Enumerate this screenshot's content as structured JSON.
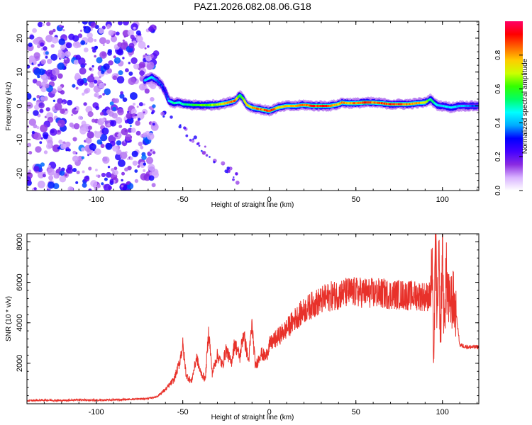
{
  "title": "PAZ1.2026.082.08.06.G18",
  "chart_data": [
    {
      "type": "heatmap",
      "title": "PAZ1.2026.082.08.06.G18",
      "xlabel": "Height of straight line (km)",
      "ylabel": "Frequency (Hz)",
      "xlim": [
        -140,
        121
      ],
      "ylim": [
        -25,
        25
      ],
      "xticks": [
        -100,
        -50,
        0,
        50,
        100
      ],
      "yticks": [
        -20,
        -10,
        0,
        10,
        20
      ],
      "xtick_labels": [
        "-100",
        "-50",
        "0",
        "50",
        "100"
      ],
      "ytick_labels": [
        "-20",
        "-10",
        "0",
        "10",
        "20"
      ],
      "colorbar": {
        "label": "Normalized spectral amplitude",
        "range": [
          0,
          1
        ],
        "ticks": [
          0,
          0.2,
          0.4,
          0.6,
          0.8
        ],
        "tick_labels": [
          "0.0",
          "0.2",
          "0.4",
          "0.6",
          "0.8"
        ],
        "colors": [
          "#ffffff",
          "#d9b3ff",
          "#8a2be2",
          "#4400ff",
          "#0000ff",
          "#00aaff",
          "#00ffff",
          "#00ff66",
          "#33ff00",
          "#ccff00",
          "#ffcc00",
          "#ff6600",
          "#ff0000",
          "#ff0066"
        ]
      },
      "ridge": {
        "x": [
          -72,
          -68,
          -65,
          -62,
          -60,
          -58,
          -55,
          -52,
          -50,
          -45,
          -40,
          -35,
          -30,
          -25,
          -20,
          -17,
          -15,
          -13,
          -10,
          -5,
          0,
          5,
          10,
          15,
          20,
          25,
          30,
          35,
          40,
          42,
          45,
          50,
          55,
          60,
          65,
          70,
          75,
          80,
          85,
          90,
          93,
          95,
          97,
          100,
          105,
          110,
          115,
          121
        ],
        "freq": [
          7.5,
          8.5,
          7.5,
          6.0,
          4.0,
          1.5,
          0.8,
          1.0,
          0.5,
          0.3,
          0.2,
          0.2,
          0.4,
          0.8,
          1.5,
          3.2,
          2.0,
          0.3,
          -0.5,
          -1.0,
          -1.5,
          -0.5,
          0.0,
          0.0,
          0.3,
          0.0,
          0.0,
          0.0,
          0.5,
          1.0,
          0.8,
          0.8,
          1.0,
          1.0,
          0.8,
          0.5,
          0.5,
          0.5,
          0.8,
          1.0,
          2.0,
          1.0,
          0.2,
          0.0,
          -0.5,
          0.0,
          0.0,
          0.0
        ],
        "amplitude": [
          0.45,
          0.5,
          0.4,
          0.35,
          0.3,
          0.45,
          0.6,
          0.5,
          0.55,
          0.6,
          0.65,
          0.7,
          0.75,
          0.85,
          0.9,
          0.6,
          0.7,
          0.8,
          0.85,
          0.9,
          0.95,
          0.85,
          0.8,
          0.85,
          0.9,
          0.95,
          0.98,
          0.9,
          0.85,
          0.9,
          0.85,
          0.9,
          0.95,
          0.9,
          0.92,
          0.95,
          0.95,
          0.9,
          0.85,
          0.8,
          0.55,
          0.6,
          0.5,
          0.45,
          0.5,
          0.45,
          0.4,
          0.35
        ]
      }
    },
    {
      "type": "line",
      "xlabel": "Height of straight line (km)",
      "ylabel": "SNR (10 * v/v)",
      "xlim": [
        -140,
        121
      ],
      "ylim": [
        0,
        8400
      ],
      "xticks": [
        -100,
        -50,
        0,
        50,
        100
      ],
      "yticks": [
        2000,
        4000,
        6000,
        8000
      ],
      "xtick_labels": [
        "-100",
        "-50",
        "0",
        "50",
        "100"
      ],
      "ytick_labels": [
        "2000",
        "4000",
        "6000",
        "8000"
      ],
      "color": "#e8312a",
      "series": [
        {
          "name": "SNR",
          "x": [
            -140,
            -130,
            -120,
            -110,
            -100,
            -90,
            -80,
            -70,
            -65,
            -60,
            -55,
            -52,
            -50,
            -48,
            -45,
            -42,
            -40,
            -37,
            -35,
            -33,
            -30,
            -27,
            -25,
            -22,
            -20,
            -17,
            -15,
            -12,
            -10,
            -8,
            -5,
            -2,
            0,
            5,
            10,
            15,
            20,
            25,
            30,
            35,
            40,
            45,
            50,
            55,
            60,
            65,
            70,
            75,
            80,
            85,
            90,
            93,
            94,
            95,
            96,
            97,
            98,
            99,
            100,
            101,
            102,
            104,
            106,
            108,
            110,
            115,
            121
          ],
          "y": [
            150,
            180,
            160,
            200,
            170,
            190,
            220,
            260,
            350,
            700,
            1200,
            2000,
            2900,
            1400,
            1100,
            2300,
            1600,
            1200,
            3600,
            1500,
            2400,
            1900,
            2700,
            2000,
            3000,
            2300,
            3500,
            2100,
            3900,
            1800,
            2500,
            2300,
            2900,
            3300,
            3700,
            4200,
            4600,
            4900,
            5100,
            5300,
            5400,
            5500,
            5500,
            5500,
            5450,
            5450,
            5400,
            5400,
            5350,
            5350,
            5300,
            5300,
            6500,
            2000,
            7800,
            4200,
            6800,
            3000,
            8300,
            3500,
            6400,
            4800,
            5200,
            4400,
            2900,
            2800,
            2800
          ]
        }
      ]
    }
  ]
}
